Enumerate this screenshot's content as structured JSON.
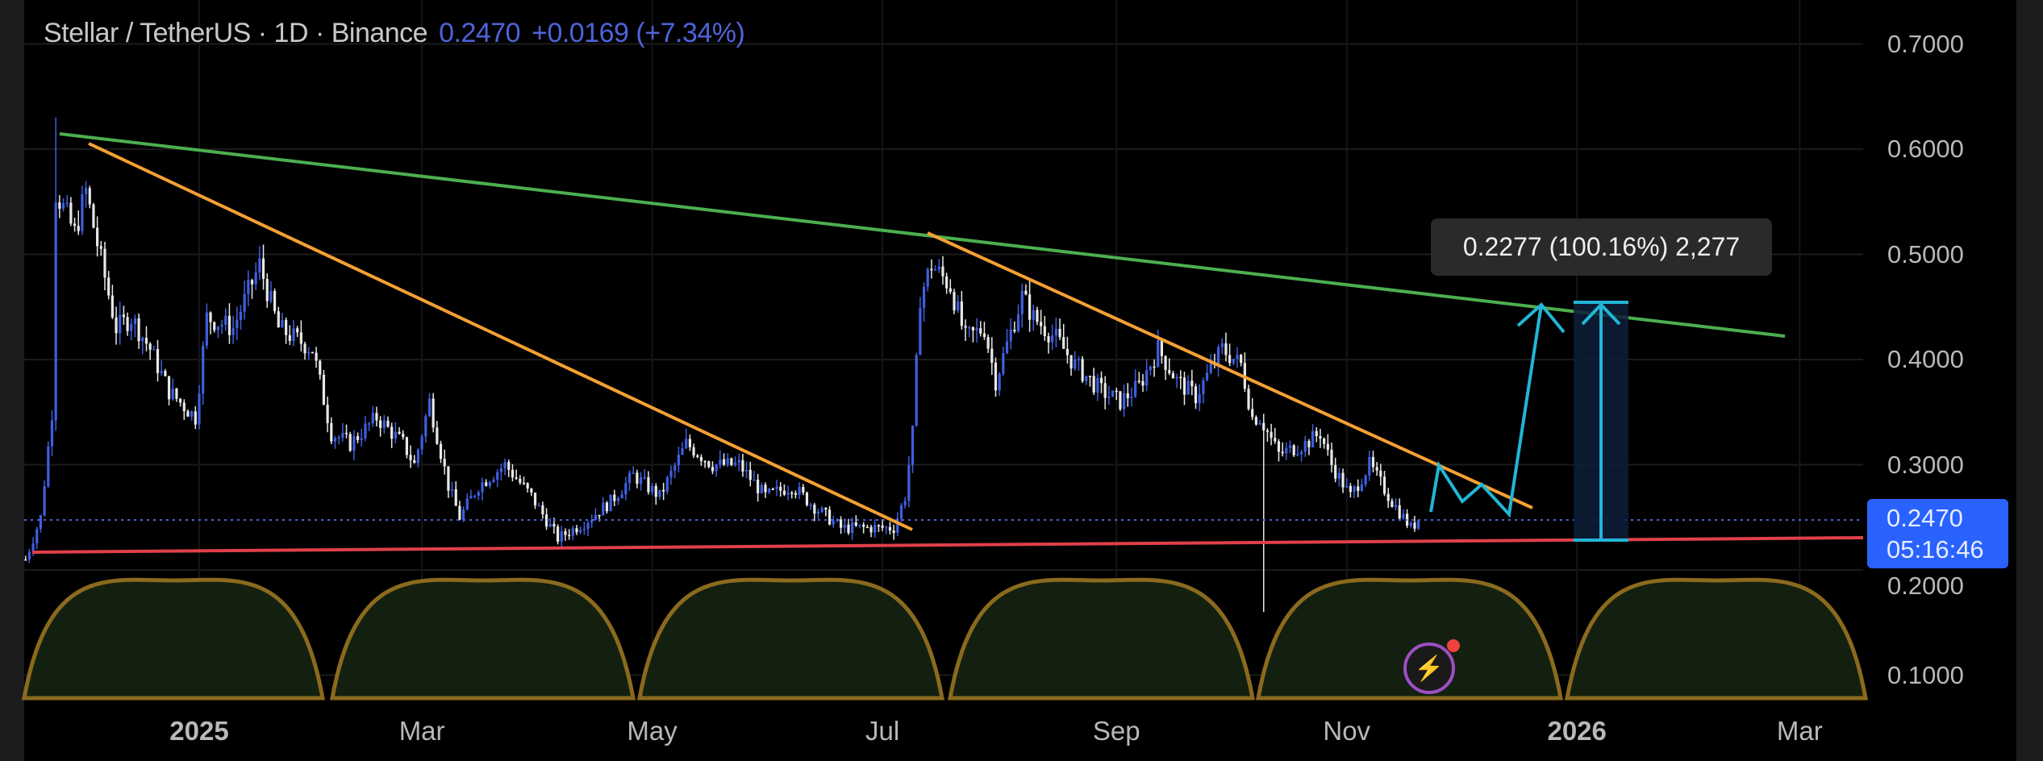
{
  "header": {
    "symbol": "Stellar / TetherUS · 1D · Binance",
    "last": "0.2470",
    "change": "+0.0169 (+7.34%)"
  },
  "price_tag": {
    "price": "0.2470",
    "countdown": "05:16:46"
  },
  "tooltip": {
    "text": "0.2277 (100.16%) 2,277"
  },
  "colors": {
    "up": "#3f5fe0",
    "down": "#e8e8e8",
    "accent": "#2962ff",
    "trend_green": "#4caf50",
    "trend_orange": "#f5a034",
    "support_red": "#e0404a",
    "projection": "#22b5d6",
    "arc_fill": "#14200f",
    "arc_stroke": "#8a6a1e"
  },
  "icons": {
    "alert": "lightning-bolt-icon"
  },
  "chart_data": {
    "type": "candlestick",
    "title": "Stellar / TetherUS · 1D · Binance",
    "ylim": [
      0.0,
      0.7
    ],
    "y_ticks": [
      "0.7000",
      "0.6000",
      "0.5000",
      "0.4000",
      "0.3000",
      "0.2000",
      "0.1000"
    ],
    "x_ticks": [
      {
        "label": "2025",
        "date": "2025-01-01",
        "bold": true
      },
      {
        "label": "Mar",
        "date": "2025-03-01"
      },
      {
        "label": "May",
        "date": "2025-05-01"
      },
      {
        "label": "Jul",
        "date": "2025-07-01"
      },
      {
        "label": "Sep",
        "date": "2025-09-01"
      },
      {
        "label": "Nov",
        "date": "2025-11-01"
      },
      {
        "label": "2026",
        "date": "2026-01-01",
        "bold": true
      },
      {
        "label": "Mar",
        "date": "2026-03-01"
      }
    ],
    "grid": true,
    "approx_closes": [
      [
        "2024-11-16",
        0.21
      ],
      [
        "2024-11-20",
        0.25
      ],
      [
        "2024-11-23",
        0.35
      ],
      [
        "2024-11-24",
        0.56
      ],
      [
        "2024-11-29",
        0.52
      ],
      [
        "2024-12-02",
        0.56
      ],
      [
        "2024-12-05",
        0.51
      ],
      [
        "2024-12-10",
        0.43
      ],
      [
        "2024-12-14",
        0.44
      ],
      [
        "2024-12-19",
        0.41
      ],
      [
        "2024-12-24",
        0.37
      ],
      [
        "2024-12-31",
        0.345
      ],
      [
        "2025-01-03",
        0.44
      ],
      [
        "2025-01-10",
        0.43
      ],
      [
        "2025-01-17",
        0.49
      ],
      [
        "2025-01-22",
        0.43
      ],
      [
        "2025-01-31",
        0.41
      ],
      [
        "2025-02-05",
        0.33
      ],
      [
        "2025-02-10",
        0.32
      ],
      [
        "2025-02-17",
        0.345
      ],
      [
        "2025-02-24",
        0.32
      ],
      [
        "2025-02-27",
        0.3
      ],
      [
        "2025-03-03",
        0.36
      ],
      [
        "2025-03-08",
        0.28
      ],
      [
        "2025-03-11",
        0.25
      ],
      [
        "2025-03-16",
        0.28
      ],
      [
        "2025-03-23",
        0.3
      ],
      [
        "2025-03-30",
        0.27
      ],
      [
        "2025-04-06",
        0.23
      ],
      [
        "2025-04-13",
        0.245
      ],
      [
        "2025-04-20",
        0.265
      ],
      [
        "2025-04-26",
        0.29
      ],
      [
        "2025-05-03",
        0.27
      ],
      [
        "2025-05-10",
        0.32
      ],
      [
        "2025-05-17",
        0.3
      ],
      [
        "2025-05-24",
        0.3
      ],
      [
        "2025-05-31",
        0.27
      ],
      [
        "2025-06-07",
        0.28
      ],
      [
        "2025-06-13",
        0.26
      ],
      [
        "2025-06-20",
        0.24
      ],
      [
        "2025-06-27",
        0.24
      ],
      [
        "2025-07-04",
        0.24
      ],
      [
        "2025-07-07",
        0.27
      ],
      [
        "2025-07-09",
        0.33
      ],
      [
        "2025-07-11",
        0.46
      ],
      [
        "2025-07-14",
        0.49
      ],
      [
        "2025-07-19",
        0.47
      ],
      [
        "2025-07-23",
        0.42
      ],
      [
        "2025-07-28",
        0.43
      ],
      [
        "2025-07-31",
        0.38
      ],
      [
        "2025-08-07",
        0.46
      ],
      [
        "2025-08-10",
        0.44
      ],
      [
        "2025-08-16",
        0.42
      ],
      [
        "2025-08-21",
        0.395
      ],
      [
        "2025-08-28",
        0.37
      ],
      [
        "2025-09-02",
        0.36
      ],
      [
        "2025-09-07",
        0.375
      ],
      [
        "2025-09-12",
        0.41
      ],
      [
        "2025-09-17",
        0.38
      ],
      [
        "2025-09-22",
        0.365
      ],
      [
        "2025-09-29",
        0.41
      ],
      [
        "2025-10-04",
        0.395
      ],
      [
        "2025-10-07",
        0.345
      ],
      [
        "2025-10-09",
        0.345
      ],
      [
        "2025-10-14",
        0.31
      ],
      [
        "2025-10-21",
        0.32
      ],
      [
        "2025-10-25",
        0.33
      ],
      [
        "2025-10-28",
        0.3
      ],
      [
        "2025-11-02",
        0.27
      ],
      [
        "2025-11-07",
        0.3
      ],
      [
        "2025-11-13",
        0.265
      ],
      [
        "2025-11-18",
        0.24
      ],
      [
        "2025-11-20",
        0.247
      ]
    ],
    "notable_wicks": [
      [
        "2024-11-24",
        0.63
      ],
      [
        "2025-10-10",
        0.16
      ]
    ],
    "last_price": 0.247
  }
}
